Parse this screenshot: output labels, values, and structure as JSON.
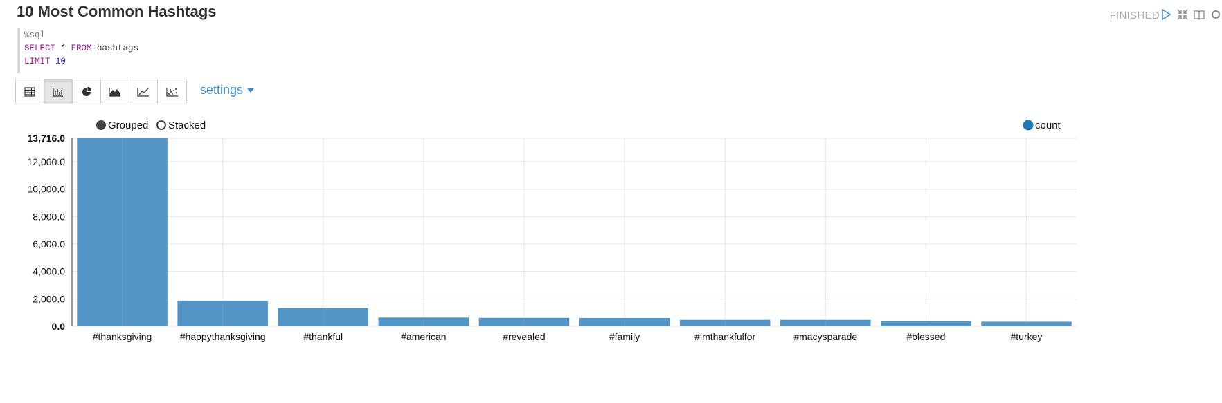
{
  "paragraph": {
    "title": "10 Most Common Hashtags",
    "status": "FINISHED"
  },
  "icons": {
    "run": "play-icon",
    "collapse": "compress-icon",
    "book": "book-icon",
    "settings": "gear-icon"
  },
  "code": {
    "interpreter": "%sql",
    "kw_select": "SELECT",
    "star": " * ",
    "kw_from": "FROM",
    "table": " hashtags",
    "kw_limit": "LIMIT",
    "limit_value": "10"
  },
  "toolbar": {
    "buttons": [
      "table-icon",
      "bar-chart-icon",
      "pie-chart-icon",
      "area-chart-icon",
      "line-chart-icon",
      "scatter-chart-icon"
    ],
    "active_index": 1,
    "settings_label": "settings"
  },
  "controls": {
    "grouped_label": "Grouped",
    "stacked_label": "Stacked",
    "selected": "Grouped"
  },
  "colors": {
    "bar": "#4a90c4",
    "legend_dot": "#1f77b4",
    "accent": "#3b8cd1"
  },
  "chart_data": {
    "type": "bar",
    "categories": [
      "#thanksgiving",
      "#happythanksgiving",
      "#thankful",
      "#american",
      "#revealed",
      "#family",
      "#imthankfulfor",
      "#macysparade",
      "#blessed",
      "#turkey"
    ],
    "series": [
      {
        "name": "count",
        "values": [
          13716,
          1850,
          1330,
          640,
          620,
          610,
          470,
          470,
          360,
          330
        ]
      }
    ],
    "y_ticks": [
      "0.0",
      "2,000.0",
      "4,000.0",
      "6,000.0",
      "8,000.0",
      "10,000.0",
      "12,000.0",
      "13,716.0"
    ],
    "ylim": [
      0,
      13716
    ],
    "grid": true,
    "legend_position": "top-right"
  }
}
